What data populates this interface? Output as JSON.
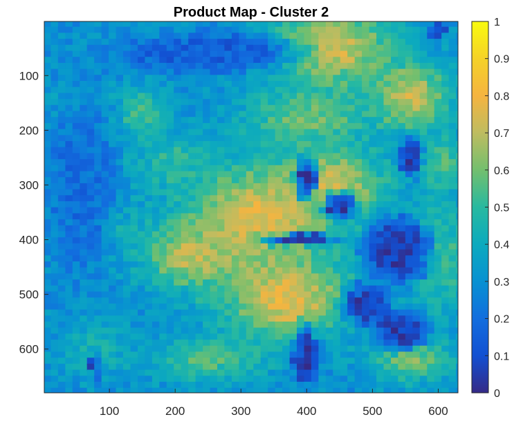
{
  "chart_data": {
    "type": "heatmap",
    "title": "Product Map - Cluster 2",
    "xlabel": "",
    "ylabel": "",
    "xlim": [
      1,
      630
    ],
    "ylim": [
      1,
      680
    ],
    "y_reversed": true,
    "x_ticks": [
      100,
      200,
      300,
      400,
      500,
      600
    ],
    "x_tick_labels": [
      "100",
      "200",
      "300",
      "400",
      "500",
      "600"
    ],
    "y_ticks": [
      100,
      200,
      300,
      400,
      500,
      600
    ],
    "y_tick_labels": [
      "100",
      "200",
      "300",
      "400",
      "500",
      "600"
    ],
    "colorbar": {
      "colormap": "parula",
      "range": [
        0,
        1
      ],
      "ticks": [
        0,
        0.1,
        0.2,
        0.3,
        0.4,
        0.5,
        0.6,
        0.7,
        0.8,
        0.9,
        1
      ],
      "tick_labels": [
        "0",
        "0.1",
        "0.2",
        "0.3",
        "0.4",
        "0.5",
        "0.6",
        "0.7",
        "0.8",
        "0.9",
        "1"
      ]
    },
    "regions": [
      {
        "x": 440,
        "y": 50,
        "rx": 110,
        "ry": 90,
        "value": 0.75
      },
      {
        "x": 560,
        "y": 140,
        "rx": 70,
        "ry": 70,
        "value": 0.72
      },
      {
        "x": 330,
        "y": 360,
        "rx": 130,
        "ry": 110,
        "value": 0.78
      },
      {
        "x": 370,
        "y": 510,
        "rx": 110,
        "ry": 90,
        "value": 0.78
      },
      {
        "x": 230,
        "y": 430,
        "rx": 90,
        "ry": 70,
        "value": 0.7
      },
      {
        "x": 440,
        "y": 300,
        "rx": 90,
        "ry": 80,
        "value": 0.72
      },
      {
        "x": 400,
        "y": 180,
        "rx": 110,
        "ry": 60,
        "value": 0.6
      },
      {
        "x": 600,
        "y": 430,
        "rx": 60,
        "ry": 120,
        "value": 0.55
      },
      {
        "x": 560,
        "y": 620,
        "rx": 70,
        "ry": 50,
        "value": 0.62
      },
      {
        "x": 150,
        "y": 170,
        "rx": 45,
        "ry": 55,
        "value": 0.55
      },
      {
        "x": 100,
        "y": 380,
        "rx": 60,
        "ry": 50,
        "value": 0.45
      },
      {
        "x": 80,
        "y": 600,
        "rx": 60,
        "ry": 60,
        "value": 0.45
      },
      {
        "x": 250,
        "y": 620,
        "rx": 100,
        "ry": 50,
        "value": 0.55
      },
      {
        "x": 610,
        "y": 260,
        "rx": 40,
        "ry": 60,
        "value": 0.55
      },
      {
        "x": 40,
        "y": 150,
        "rx": 30,
        "ry": 40,
        "value": 0.4
      },
      {
        "x": 200,
        "y": 260,
        "rx": 70,
        "ry": 60,
        "value": 0.5
      }
    ],
    "low_regions": [
      {
        "x": 400,
        "y": 290,
        "rx": 22,
        "ry": 45,
        "value": 0.05
      },
      {
        "x": 450,
        "y": 340,
        "rx": 35,
        "ry": 32,
        "value": 0.05
      },
      {
        "x": 390,
        "y": 400,
        "rx": 75,
        "ry": 14,
        "value": 0.05
      },
      {
        "x": 540,
        "y": 420,
        "rx": 70,
        "ry": 80,
        "value": 0.05
      },
      {
        "x": 490,
        "y": 520,
        "rx": 45,
        "ry": 50,
        "value": 0.05
      },
      {
        "x": 400,
        "y": 610,
        "rx": 28,
        "ry": 70,
        "value": 0.05
      },
      {
        "x": 545,
        "y": 570,
        "rx": 55,
        "ry": 45,
        "value": 0.05
      },
      {
        "x": 560,
        "y": 250,
        "rx": 22,
        "ry": 50,
        "value": 0.05
      },
      {
        "x": 600,
        "y": 20,
        "rx": 18,
        "ry": 20,
        "value": 0.05
      },
      {
        "x": 80,
        "y": 640,
        "rx": 12,
        "ry": 38,
        "value": 0.1
      },
      {
        "x": 250,
        "y": 60,
        "rx": 180,
        "ry": 50,
        "value": 0.15
      },
      {
        "x": 60,
        "y": 300,
        "rx": 70,
        "ry": 200,
        "value": 0.2
      }
    ],
    "base_value": 0.3
  }
}
